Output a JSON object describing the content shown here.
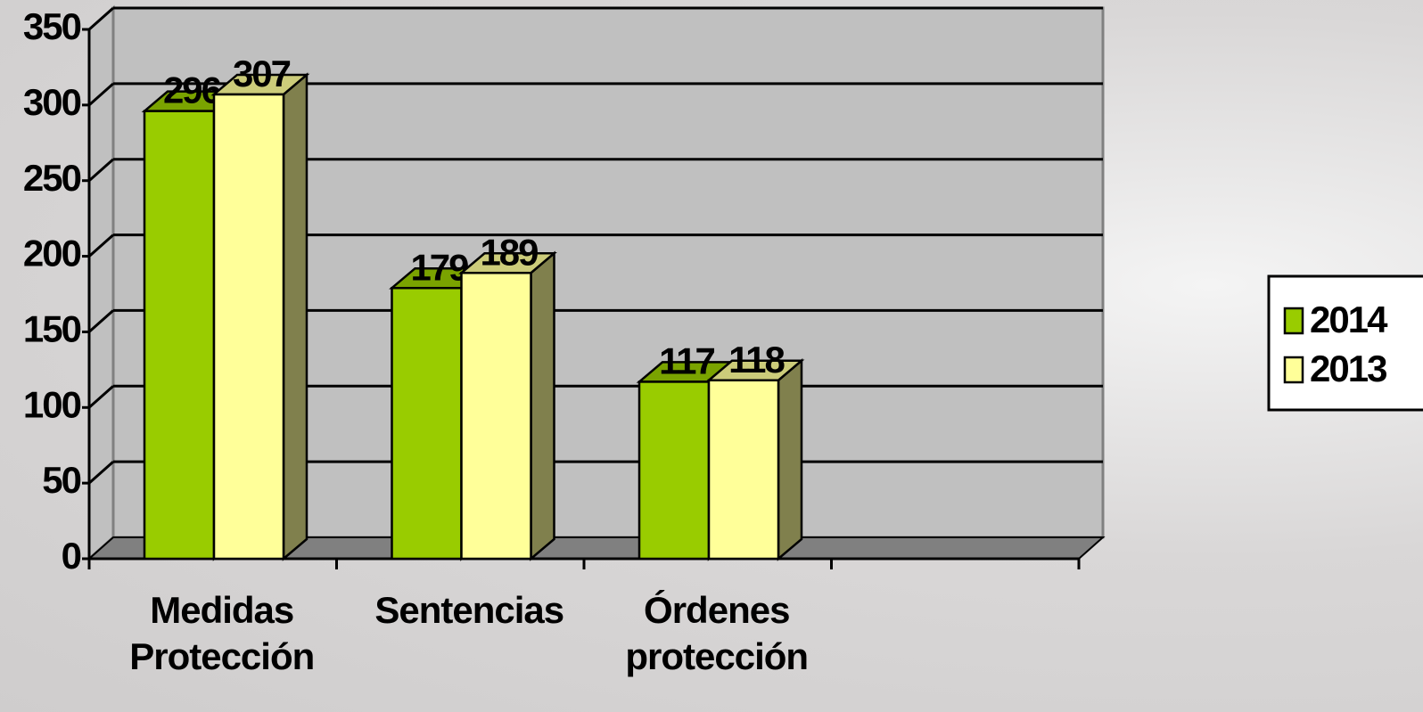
{
  "chart_data": {
    "type": "bar3d",
    "categories": [
      "Medidas Protección",
      "Sentencias",
      "Órdenes protección",
      null
    ],
    "series": [
      {
        "name": "2014",
        "color": "#99cc00",
        "values": [
          296,
          179,
          117,
          null
        ]
      },
      {
        "name": "2013",
        "color": "#ffff99",
        "values": [
          307,
          189,
          118,
          null
        ]
      }
    ],
    "ylim": [
      0,
      350
    ],
    "yticks": [
      0,
      50,
      100,
      150,
      200,
      250,
      300,
      350
    ],
    "grid": true,
    "legend": "right"
  }
}
